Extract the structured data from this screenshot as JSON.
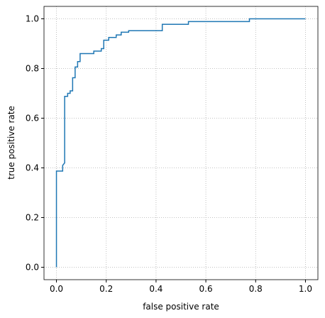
{
  "chart_data": {
    "type": "line",
    "x_label": "false positive rate",
    "y_label": "true positive rate",
    "xlim": [
      -0.05,
      1.05
    ],
    "ylim": [
      -0.05,
      1.05
    ],
    "xticks": [
      {
        "value": 0,
        "label": "0.0"
      },
      {
        "value": 0.2,
        "label": "0.2"
      },
      {
        "value": 0.4,
        "label": "0.4"
      },
      {
        "value": 0.6,
        "label": "0.6"
      },
      {
        "value": 0.8,
        "label": "0.8"
      },
      {
        "value": 1,
        "label": "1.0"
      }
    ],
    "yticks": [
      {
        "value": 0,
        "label": "0.0"
      },
      {
        "value": 0.2,
        "label": "0.2"
      },
      {
        "value": 0.4,
        "label": "0.4"
      },
      {
        "value": 0.6,
        "label": "0.6"
      },
      {
        "value": 0.8,
        "label": "0.8"
      },
      {
        "value": 1,
        "label": "1.0"
      }
    ],
    "grid": true,
    "series": [
      {
        "color": "#1f77b4",
        "x": [
          0,
          0,
          0.025,
          0.025,
          0.033,
          0.033,
          0.045,
          0.045,
          0.055,
          0.055,
          0.065,
          0.065,
          0.075,
          0.075,
          0.085,
          0.085,
          0.095,
          0.095,
          0.15,
          0.15,
          0.18,
          0.18,
          0.19,
          0.19,
          0.21,
          0.21,
          0.24,
          0.24,
          0.26,
          0.26,
          0.29,
          0.29,
          0.425,
          0.425,
          0.53,
          0.53,
          0.775,
          0.775,
          1
        ],
        "values": [
          0,
          0.387,
          0.387,
          0.41,
          0.42,
          0.688,
          0.688,
          0.7,
          0.7,
          0.71,
          0.71,
          0.763,
          0.763,
          0.806,
          0.806,
          0.828,
          0.828,
          0.86,
          0.86,
          0.87,
          0.87,
          0.88,
          0.88,
          0.914,
          0.914,
          0.925,
          0.925,
          0.935,
          0.935,
          0.946,
          0.946,
          0.952,
          0.952,
          0.978,
          0.978,
          0.989,
          0.989,
          1,
          1
        ]
      }
    ]
  }
}
